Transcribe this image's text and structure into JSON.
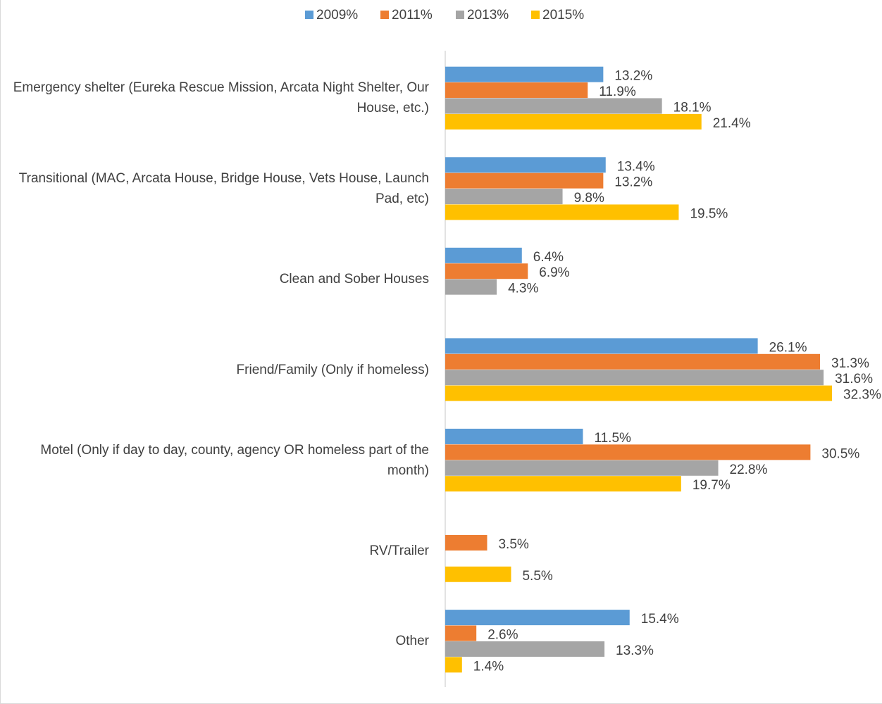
{
  "chart_data": {
    "type": "bar",
    "orientation": "horizontal",
    "categories": [
      "Emergency shelter (Eureka Rescue Mission, Arcata Night Shelter, Our House, etc.)",
      "Transitional (MAC, Arcata House, Bridge House, Vets House, Launch Pad, etc)",
      "Clean and Sober Houses",
      "Friend/Family (Only if homeless)",
      "Motel (Only if day to day, county, agency OR homeless part of the month)",
      "RV/Trailer",
      "Other"
    ],
    "series": [
      {
        "name": "2009%",
        "color": "#5b9bd5",
        "values": [
          13.2,
          13.4,
          6.4,
          26.1,
          11.5,
          null,
          15.4
        ],
        "value_labels": [
          "13.2%",
          "13.4%",
          "6.4%",
          "26.1%",
          "11.5%",
          null,
          "15.4%"
        ]
      },
      {
        "name": "2011%",
        "color": "#ed7d31",
        "values": [
          11.9,
          13.2,
          6.9,
          31.3,
          30.5,
          3.5,
          2.6
        ],
        "value_labels": [
          "11.9%",
          "13.2%",
          "6.9%",
          "31.3%",
          "30.5%",
          "3.5%",
          "2.6%"
        ]
      },
      {
        "name": "2013%",
        "color": "#a5a5a5",
        "values": [
          18.1,
          9.8,
          4.3,
          31.6,
          22.8,
          null,
          13.3
        ],
        "value_labels": [
          "18.1%",
          "9.8%",
          "4.3%",
          "31.6%",
          "22.8%",
          null,
          "13.3%"
        ]
      },
      {
        "name": "2015%",
        "color": "#ffc000",
        "values": [
          21.4,
          19.5,
          null,
          32.3,
          19.7,
          5.5,
          1.4
        ],
        "value_labels": [
          "21.4%",
          "19.5%",
          null,
          "32.3%",
          "19.7%",
          "5.5%",
          "1.4%"
        ]
      }
    ],
    "legend": "top"
  }
}
